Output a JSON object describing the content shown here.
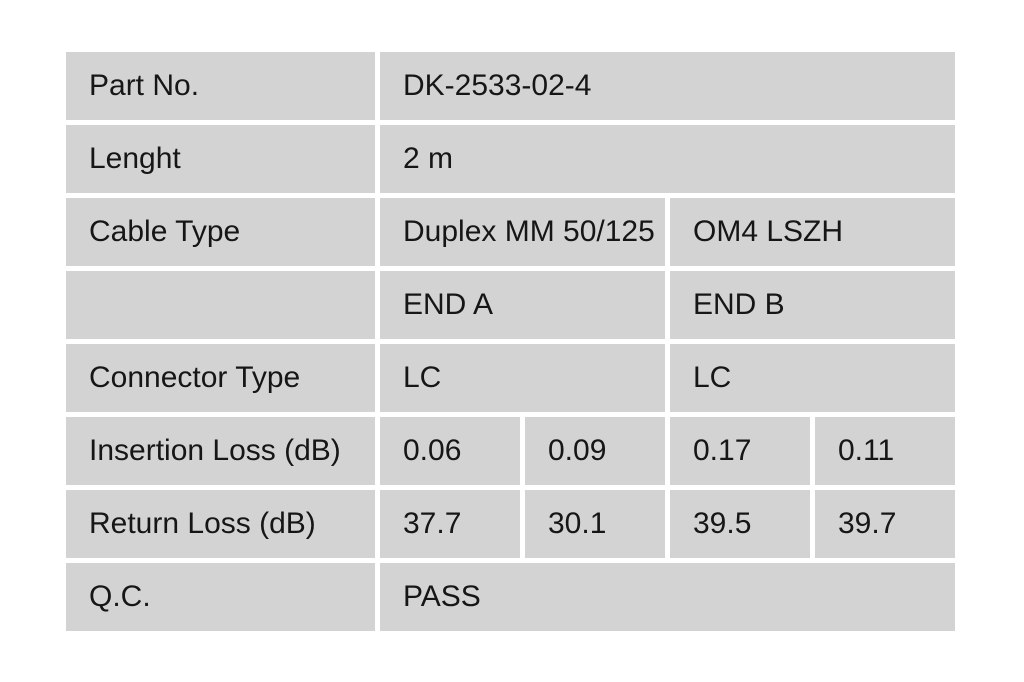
{
  "colors": {
    "cell_bg": "#d3d3d3",
    "text": "#161616",
    "page_bg": "#ffffff"
  },
  "table": {
    "rows": [
      {
        "label": "Part No.",
        "values": [
          "DK-2533-02-4"
        ]
      },
      {
        "label": "Lenght",
        "values": [
          "2 m"
        ]
      },
      {
        "label": "Cable Type",
        "values": [
          "Duplex MM 50/125",
          "OM4 LSZH"
        ]
      },
      {
        "label": "",
        "values": [
          "END A",
          "END B"
        ]
      },
      {
        "label": "Connector Type",
        "values": [
          "LC",
          "LC"
        ]
      },
      {
        "label": "Insertion Loss (dB)",
        "values": [
          "0.06",
          "0.09",
          "0.17",
          "0.11"
        ]
      },
      {
        "label": "Return Loss (dB)",
        "values": [
          "37.7",
          "30.1",
          "39.5",
          "39.7"
        ]
      },
      {
        "label": "Q.C.",
        "values": [
          "PASS"
        ]
      }
    ]
  }
}
